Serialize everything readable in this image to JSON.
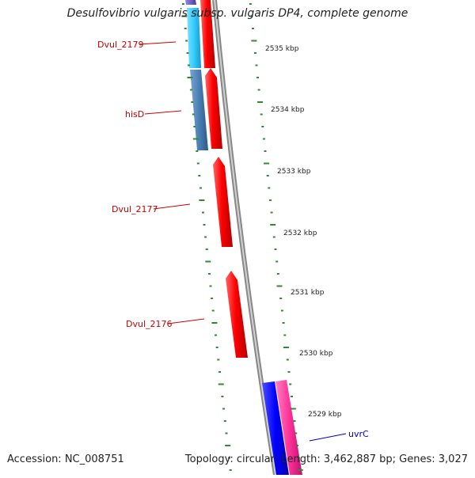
{
  "title": "Desulfovibrio vulgaris subsp. vulgaris DP4, complete genome",
  "footer": {
    "accession": "Accession: NC_008751",
    "stats": "Topology: circular; Length: 3,462,887 bp; Genes: 3,027"
  },
  "ruler_labels": [
    "2535 kbp",
    "2534 kbp",
    "2533 kbp",
    "2532 kbp",
    "2531 kbp",
    "2530 kbp",
    "2529 kbp"
  ],
  "gene_labels": [
    {
      "text": "Dvul_2179",
      "color": "#cc0000"
    },
    {
      "text": "hisD",
      "color": "#cc0000"
    },
    {
      "text": "Dvul_2177",
      "color": "#cc0000"
    },
    {
      "text": "Dvul_2176",
      "color": "#cc0000"
    },
    {
      "text": "uvrC",
      "color": "#0000cc"
    }
  ],
  "colors": {
    "forward_gene": "#ff0000",
    "reverse_gene_light": "#33ccff",
    "reverse_gene_dark": "#4a7fb5",
    "uvrC_gene": "#0000ff",
    "pink_gene": "#ff3399",
    "purple_gene": "#6a4fc0",
    "tick": "#2e8b2e",
    "backbone": "#888888"
  }
}
